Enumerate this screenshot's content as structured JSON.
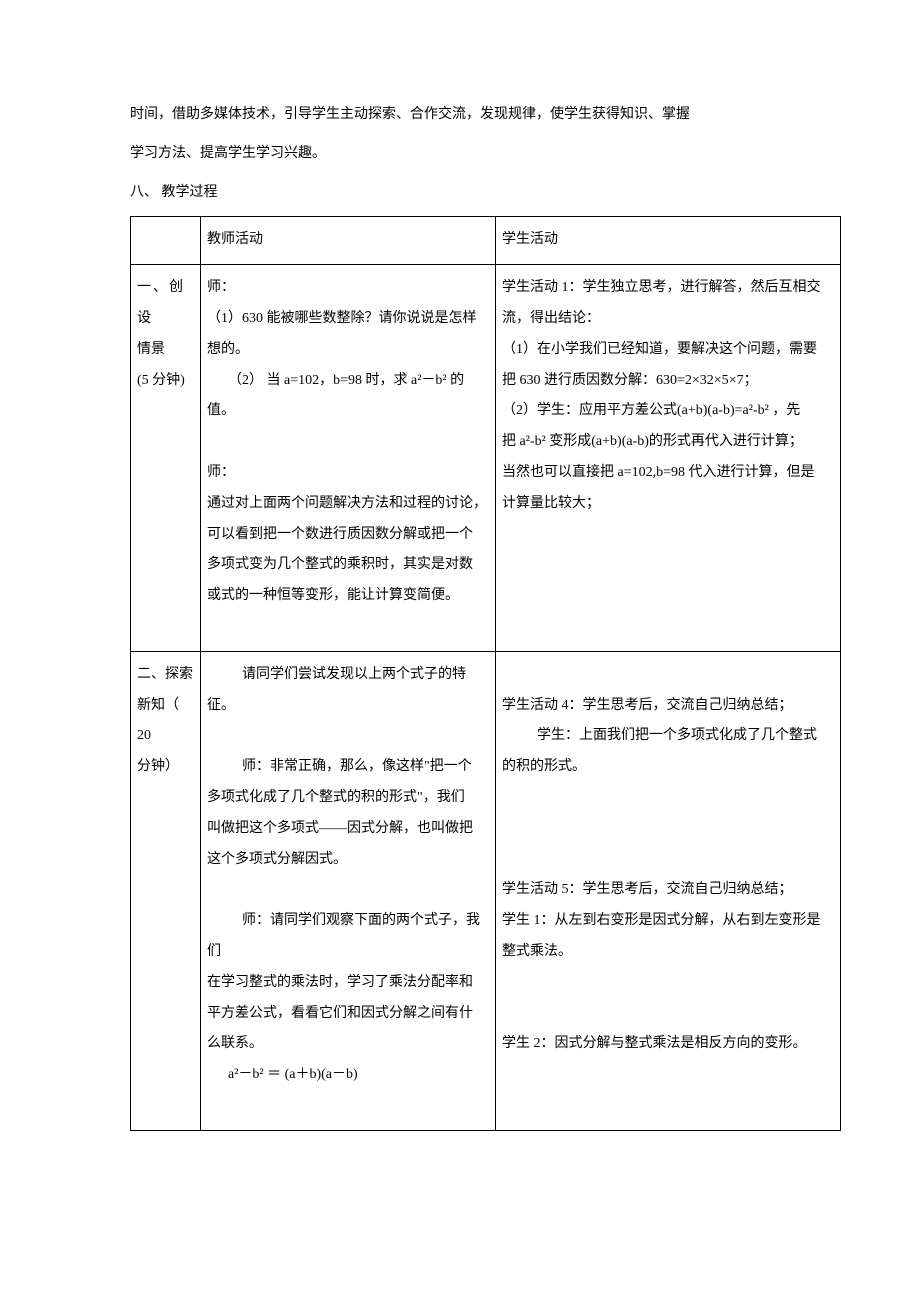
{
  "intro": {
    "line1": "时间，借助多媒体技术，引导学生主动探索、合作交流，发现规律，使学生获得知识、掌握",
    "line2": "学习方法、提高学生学习兴趣。"
  },
  "section_title": "八、 教学过程",
  "table": {
    "header": {
      "col2": "教师活动",
      "col3": "学生活动"
    },
    "row1": {
      "col1_line1": "一、创 设",
      "col1_line2": "情景",
      "col1_line3": "(5 分钟)",
      "col2_line1": "师：",
      "col2_line2": "（1）630 能被哪些数整除？请你说说是怎样",
      "col2_line3": "想的。",
      "col2_line4": "（2）   当 a=102，b=98 时，求 a²－b² 的值。",
      "col2_line5": "",
      "col2_line6": "师：",
      "col2_line7": "通过对上面两个问题解决方法和过程的讨论，",
      "col2_line8": "可以看到把一个数进行质因数分解或把一个",
      "col2_line9": "多项式变为几个整式的乘积时，其实是对数",
      "col2_line10": "或式的一种恒等变形，能让计算变简便。",
      "col3_line1": "学生活动 1：学生独立思考，进行解答，然后互相交",
      "col3_line2": "流，得出结论：",
      "col3_line3": "（1）在小学我们已经知道，要解决这个问题，需要",
      "col3_line4": "把 630 进行质因数分解：630=2×32×5×7；",
      "col3_line5": "（2）学生：应用平方差公式(a+b)(a-b)=a²-b² ，先",
      "col3_line6": "把 a²-b² 变形成(a+b)(a-b)的形式再代入进行计算；",
      "col3_line7": "当然也可以直接把 a=102,b=98 代入进行计算，但是",
      "col3_line8": "计算量比较大；"
    },
    "row2": {
      "col1_line1": "二、探索",
      "col1_line2": "新知（ 20",
      "col1_line3": "分钟）",
      "col2_line1": "请同学们尝试发现以上两个式子的特",
      "col2_line2": "征。",
      "col2_line3": "",
      "col2_line4": "师：非常正确，那么，像这样\"把一个",
      "col2_line5": "多项式化成了几个整式的积的形式\"，我们",
      "col2_line6": "叫做把这个多项式——因式分解，也叫做把",
      "col2_line7": "这个多项式分解因式。",
      "col2_line8": "",
      "col2_line9": "师：请同学们观察下面的两个式子，我们",
      "col2_line10": "在学习整式的乘法时，学习了乘法分配率和",
      "col2_line11": "平方差公式，看看它们和因式分解之间有什",
      "col2_line12": "么联系。",
      "col2_line13": "a²－b²  ＝ (a＋b)(a－b)",
      "col3_line1": "",
      "col3_line2": "学生活动 4：学生思考后，交流自己归纳总结；",
      "col3_line3": "学生：上面我们把一个多项式化成了几个整式",
      "col3_line4": "的积的形式。",
      "col3_line5": "",
      "col3_line6": "",
      "col3_line7": "",
      "col3_line8": "学生活动 5：学生思考后，交流自己归纳总结；",
      "col3_line9": "学生 1：从左到右变形是因式分解，从右到左变形是",
      "col3_line10": "整式乘法。",
      "col3_line11": "",
      "col3_line12": "",
      "col3_line13": "学生 2：因式分解与整式乘法是相反方向的变形。"
    }
  }
}
